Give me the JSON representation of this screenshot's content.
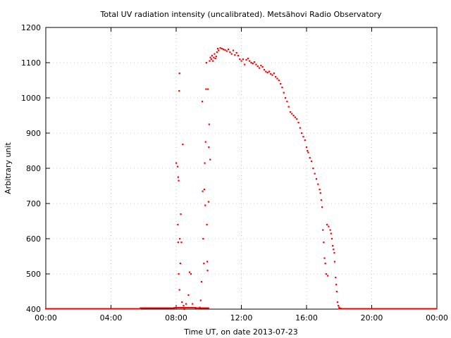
{
  "chart_data": {
    "type": "scatter",
    "title": "Total UV radiation intensity (uncalibrated). Metsähovi Radio Observatory",
    "xlabel": "Time UT, on date 2013-07-23",
    "ylabel": "Arbitrary unit",
    "xlim": [
      0,
      24
    ],
    "ylim": [
      400,
      1200
    ],
    "x_unit": "hours UT",
    "x_ticks": [
      "00:00",
      "04:00",
      "08:00",
      "12:00",
      "16:00",
      "20:00",
      "00:00"
    ],
    "y_ticks": [
      "400",
      "500",
      "600",
      "700",
      "800",
      "900",
      "1000",
      "1100",
      "1200"
    ],
    "grid": true,
    "marker_color": "#ff0000",
    "series": [
      {
        "points": [
          [
            8.0,
            815
          ],
          [
            8.08,
            805
          ],
          [
            8.12,
            775
          ],
          [
            8.15,
            765
          ],
          [
            8.18,
            1020
          ],
          [
            8.2,
            1070
          ],
          [
            8.1,
            640
          ],
          [
            8.12,
            590
          ],
          [
            8.15,
            500
          ],
          [
            8.2,
            455
          ],
          [
            8.22,
            600
          ],
          [
            8.25,
            530
          ],
          [
            8.28,
            670
          ],
          [
            8.32,
            590
          ],
          [
            8.35,
            420
          ],
          [
            8.4,
            868
          ],
          [
            8.45,
            410
          ],
          [
            8.5,
            400
          ],
          [
            8.6,
            415
          ],
          [
            8.75,
            440
          ],
          [
            8.82,
            505
          ],
          [
            8.9,
            500
          ],
          [
            9.0,
            415
          ],
          [
            9.3,
            402
          ],
          [
            9.45,
            405
          ],
          [
            9.5,
            425
          ],
          [
            9.55,
            478
          ],
          [
            9.6,
            990
          ],
          [
            9.62,
            735
          ],
          [
            9.65,
            600
          ],
          [
            9.7,
            530
          ],
          [
            9.72,
            740
          ],
          [
            9.75,
            815
          ],
          [
            9.78,
            695
          ],
          [
            9.8,
            875
          ],
          [
            9.83,
            1025
          ],
          [
            9.85,
            1100
          ],
          [
            9.88,
            640
          ],
          [
            9.9,
            535
          ],
          [
            9.92,
            510
          ],
          [
            9.95,
            1025
          ],
          [
            9.98,
            705
          ],
          [
            10.0,
            860
          ],
          [
            10.02,
            925
          ],
          [
            10.05,
            1105
          ],
          [
            10.08,
            825
          ],
          [
            10.1,
            1115
          ],
          [
            10.15,
            1110
          ],
          [
            10.2,
            1120
          ],
          [
            10.25,
            1105
          ],
          [
            10.3,
            1115
          ],
          [
            10.35,
            1125
          ],
          [
            10.4,
            1112
          ],
          [
            10.45,
            1118
          ],
          [
            10.5,
            1130
          ],
          [
            10.55,
            1140
          ],
          [
            10.6,
            1135
          ],
          [
            10.7,
            1142
          ],
          [
            10.8,
            1140
          ],
          [
            10.9,
            1138
          ],
          [
            11.0,
            1136
          ],
          [
            11.1,
            1133
          ],
          [
            11.2,
            1138
          ],
          [
            11.3,
            1130
          ],
          [
            11.4,
            1125
          ],
          [
            11.5,
            1135
          ],
          [
            11.6,
            1122
          ],
          [
            11.7,
            1128
          ],
          [
            11.8,
            1120
          ],
          [
            11.9,
            1110
          ],
          [
            12.0,
            1105
          ],
          [
            12.1,
            1110
          ],
          [
            12.2,
            1095
          ],
          [
            12.3,
            1108
          ],
          [
            12.4,
            1112
          ],
          [
            12.5,
            1105
          ],
          [
            12.6,
            1100
          ],
          [
            12.7,
            1098
          ],
          [
            12.8,
            1102
          ],
          [
            12.9,
            1095
          ],
          [
            13.0,
            1090
          ],
          [
            13.1,
            1085
          ],
          [
            13.2,
            1092
          ],
          [
            13.3,
            1088
          ],
          [
            13.4,
            1080
          ],
          [
            13.5,
            1075
          ],
          [
            13.6,
            1072
          ],
          [
            13.7,
            1075
          ],
          [
            13.8,
            1068
          ],
          [
            13.9,
            1065
          ],
          [
            14.0,
            1070
          ],
          [
            14.1,
            1060
          ],
          [
            14.2,
            1055
          ],
          [
            14.3,
            1050
          ],
          [
            14.4,
            1040
          ],
          [
            14.5,
            1030
          ],
          [
            14.6,
            1015
          ],
          [
            14.7,
            1000
          ],
          [
            14.8,
            990
          ],
          [
            14.9,
            975
          ],
          [
            15.0,
            960
          ],
          [
            15.1,
            955
          ],
          [
            15.2,
            950
          ],
          [
            15.3,
            945
          ],
          [
            15.4,
            940
          ],
          [
            15.5,
            930
          ],
          [
            15.6,
            915
          ],
          [
            15.7,
            900
          ],
          [
            15.8,
            890
          ],
          [
            15.9,
            880
          ],
          [
            16.0,
            860
          ],
          [
            16.05,
            850
          ],
          [
            16.1,
            845
          ],
          [
            16.2,
            830
          ],
          [
            16.3,
            820
          ],
          [
            16.4,
            800
          ],
          [
            16.5,
            785
          ],
          [
            16.6,
            770
          ],
          [
            16.7,
            755
          ],
          [
            16.8,
            740
          ],
          [
            16.85,
            730
          ],
          [
            16.9,
            710
          ],
          [
            16.95,
            690
          ],
          [
            17.0,
            625
          ],
          [
            17.05,
            590
          ],
          [
            17.1,
            545
          ],
          [
            17.15,
            530
          ],
          [
            17.2,
            500
          ],
          [
            17.3,
            495
          ],
          [
            17.25,
            640
          ],
          [
            17.35,
            635
          ],
          [
            17.45,
            625
          ],
          [
            17.5,
            615
          ],
          [
            17.55,
            600
          ],
          [
            17.6,
            580
          ],
          [
            17.65,
            570
          ],
          [
            17.7,
            560
          ],
          [
            17.72,
            535
          ],
          [
            17.78,
            490
          ],
          [
            17.82,
            470
          ],
          [
            17.85,
            450
          ],
          [
            17.9,
            420
          ],
          [
            17.95,
            410
          ],
          [
            18.0,
            405
          ],
          [
            18.1,
            402
          ]
        ],
        "baseline": [
          {
            "from": 0.0,
            "to": 5.8,
            "value": 401
          },
          {
            "from": 5.8,
            "to": 7.9,
            "value": 403
          },
          {
            "from": 7.9,
            "to": 9.2,
            "value": 404
          },
          {
            "from": 9.2,
            "to": 10.0,
            "value": 403
          },
          {
            "from": 18.0,
            "to": 24.0,
            "value": 401
          }
        ]
      }
    ]
  }
}
